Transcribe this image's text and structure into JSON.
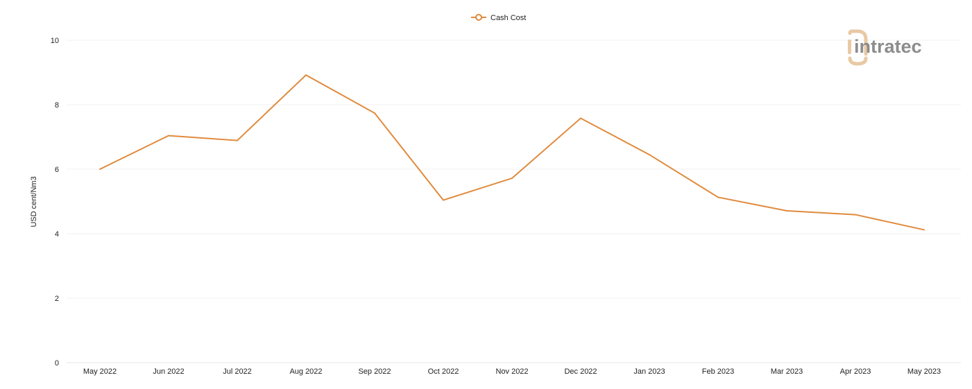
{
  "chart_data": {
    "type": "line",
    "title": "",
    "xlabel": "",
    "ylabel": "USD cent/Nm3",
    "ylim": [
      0,
      10
    ],
    "yticks": [
      0,
      2,
      4,
      6,
      8,
      10
    ],
    "grid": true,
    "legend_position": "top-center",
    "categories": [
      "May 2022",
      "Jun 2022",
      "Jul 2022",
      "Aug 2022",
      "Sep 2022",
      "Oct 2022",
      "Nov 2022",
      "Dec 2022",
      "Jan 2023",
      "Feb 2023",
      "Mar 2023",
      "Apr 2023",
      "May 2023"
    ],
    "series": [
      {
        "name": "Cash Cost",
        "color": "#e08a3c",
        "values": [
          6.0,
          7.04,
          6.89,
          8.92,
          7.74,
          5.04,
          5.72,
          7.58,
          6.45,
          5.13,
          4.71,
          4.59,
          4.12
        ]
      }
    ]
  },
  "logo": {
    "text": "intratec",
    "accent_color": "#e9c9a4",
    "text_color": "#8c8c8c"
  }
}
